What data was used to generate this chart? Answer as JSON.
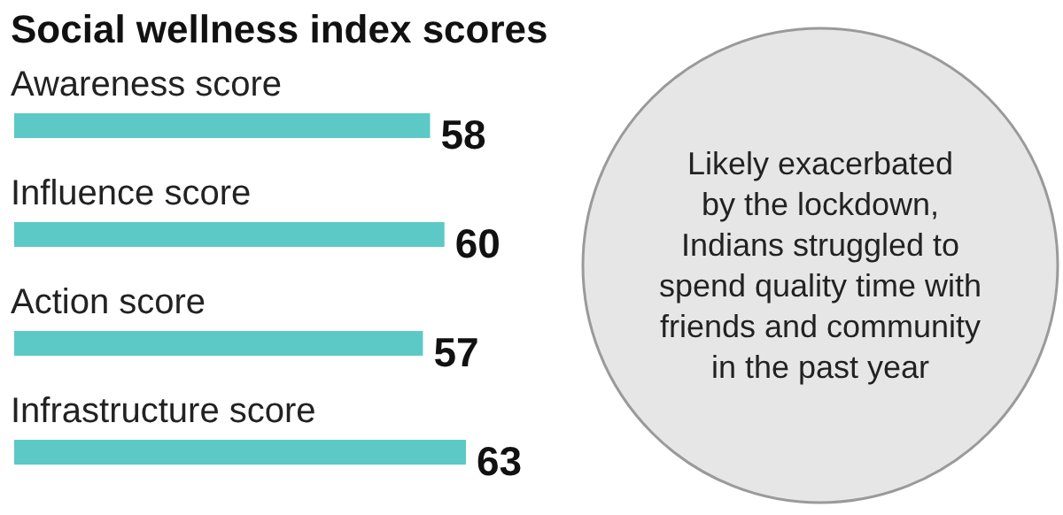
{
  "chart_data": {
    "type": "bar",
    "orientation": "horizontal",
    "title": "Social wellness index scores",
    "categories": [
      "Awareness score",
      "Influence score",
      "Action score",
      "Infrastructure score"
    ],
    "values": [
      58,
      60,
      57,
      63
    ],
    "color": "#5cc9c6",
    "data_labels": true,
    "annotations": [
      "Likely exacerbated by the lockdown, Indians struggled to spend quality time with friends and community in the past year"
    ]
  }
}
